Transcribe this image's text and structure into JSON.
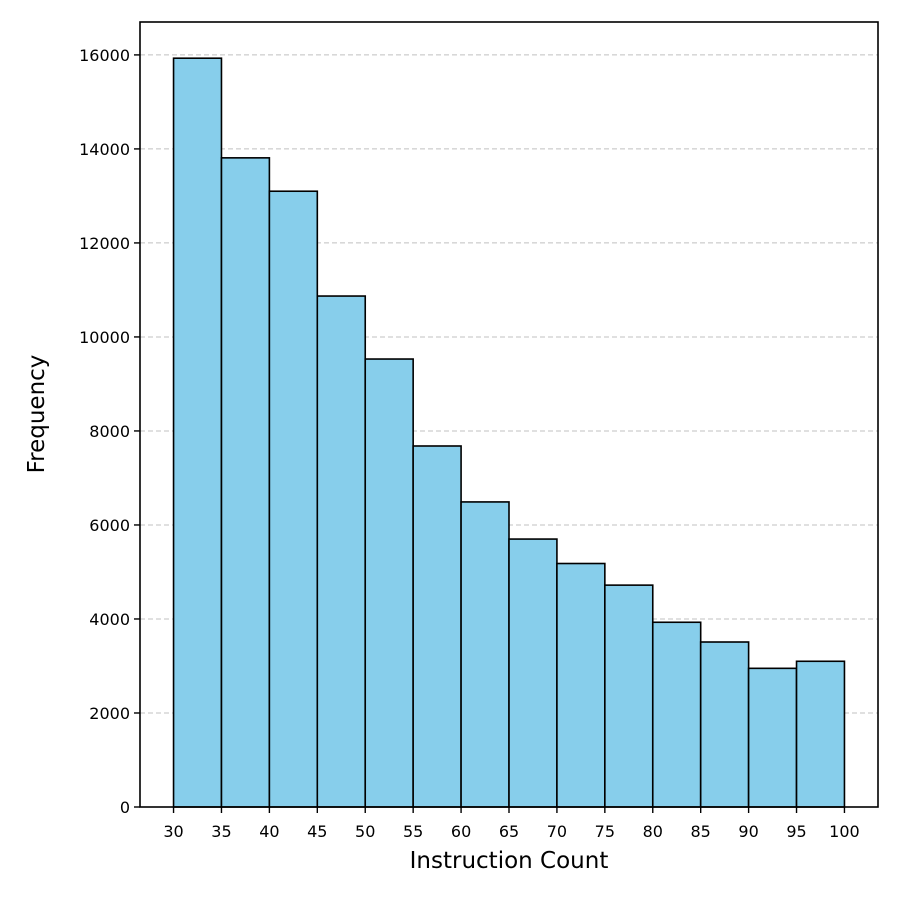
{
  "chart_data": {
    "type": "bar",
    "subtype": "histogram",
    "title": "",
    "xlabel": "Instruction Count",
    "ylabel": "Frequency",
    "bin_edges": [
      30,
      35,
      40,
      45,
      50,
      55,
      60,
      65,
      70,
      75,
      80,
      85,
      90,
      95,
      100
    ],
    "categories": [
      "30-35",
      "35-40",
      "40-45",
      "45-50",
      "50-55",
      "55-60",
      "60-65",
      "65-70",
      "70-75",
      "75-80",
      "80-85",
      "85-90",
      "90-95",
      "95-100"
    ],
    "values": [
      15930,
      13810,
      13100,
      10870,
      9530,
      7680,
      6490,
      5700,
      5180,
      4720,
      3930,
      3510,
      2950,
      3100
    ],
    "xticks": [
      30,
      35,
      40,
      45,
      50,
      55,
      60,
      65,
      70,
      75,
      80,
      85,
      90,
      95,
      100
    ],
    "yticks": [
      0,
      2000,
      4000,
      6000,
      8000,
      10000,
      12000,
      14000,
      16000
    ],
    "xlim": [
      26.5,
      103.5
    ],
    "ylim": [
      0,
      16700
    ],
    "grid": {
      "axis": "y",
      "style": "dashed",
      "color": "#c0c0c0"
    },
    "legend": null,
    "colors": {
      "bar_fill": "#87ceeb",
      "bar_edge": "#000000"
    }
  }
}
